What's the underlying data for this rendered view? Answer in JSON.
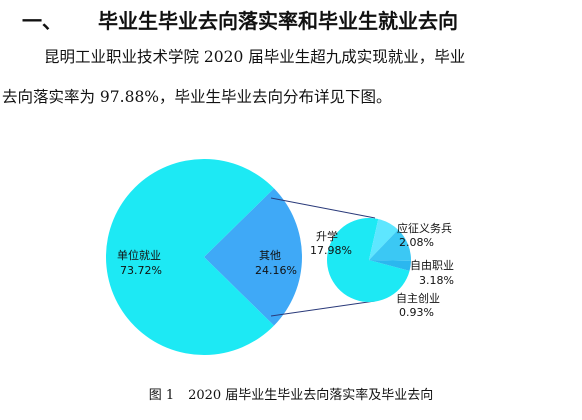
{
  "heading": {
    "number": "一、",
    "title": "毕业生毕业去向落实率和毕业生就业去向"
  },
  "paragraph": {
    "line1": "昆明工业职业技术学院 2020 届毕业生超九成实现就业，毕业",
    "line2": "去向落实率为 97.88%，毕业生毕业去向分布详见下图。"
  },
  "chart_data": {
    "type": "pie",
    "main_pie": {
      "slices": [
        {
          "name": "单位就业",
          "value": 73.72,
          "value_label": "73.72%",
          "color": "#1de9f4"
        },
        {
          "name": "其他",
          "value": 24.16,
          "value_label": "24.16%",
          "color": "#3fa9f7"
        }
      ]
    },
    "sub_pie": {
      "slices": [
        {
          "name": "升学",
          "value": 17.98,
          "value_label": "17.98%",
          "color": "#1de9f4"
        },
        {
          "name": "应征义务兵",
          "value": 2.08,
          "value_label": "2.08%",
          "color": "#5ee6ff"
        },
        {
          "name": "自由职业",
          "value": 3.18,
          "value_label": "3.18%",
          "color": "#3bc8f4"
        },
        {
          "name": "自主创业",
          "value": 0.93,
          "value_label": "0.93%",
          "color": "#2bb7ef"
        }
      ]
    }
  },
  "caption": {
    "label": "图 1",
    "text": "2020 届毕业生毕业去向落实率及毕业去向"
  }
}
